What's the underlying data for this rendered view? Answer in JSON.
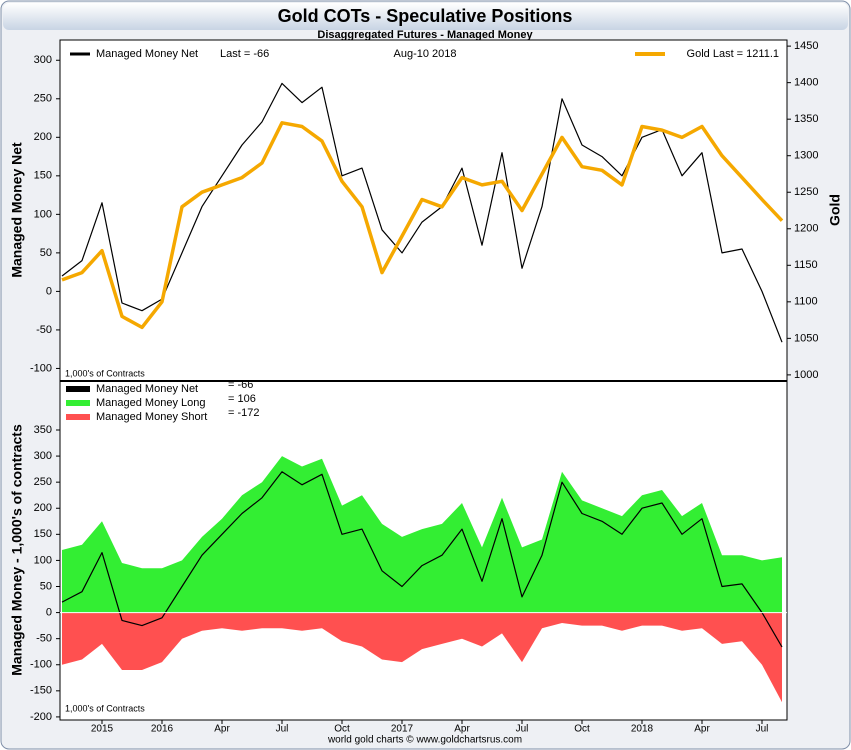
{
  "title": "Gold COTs - Speculative Positions",
  "footer": "world gold charts © www.goldchartsrus.com",
  "chart_data": [
    {
      "type": "line",
      "subtitle": "Disaggregated Futures - Managed Money",
      "date_label": "Aug-10  2018",
      "y_label": "Managed Money Net",
      "y2_label": "Gold",
      "note": "1,000's of Contracts",
      "legend_last": [
        "Last = -66",
        "Gold Last = 1211.1"
      ],
      "x": [
        "2015-08",
        "2015-09",
        "2015-10",
        "2015-11",
        "2015-12",
        "2016-01",
        "2016-02",
        "2016-03",
        "2016-04",
        "2016-05",
        "2016-06",
        "2016-07",
        "2016-08",
        "2016-09",
        "2016-10",
        "2016-11",
        "2016-12",
        "2017-01",
        "2017-02",
        "2017-03",
        "2017-04",
        "2017-05",
        "2017-06",
        "2017-07",
        "2017-08",
        "2017-09",
        "2017-10",
        "2017-11",
        "2017-12",
        "2018-01",
        "2018-02",
        "2018-03",
        "2018-04",
        "2018-05",
        "2018-06",
        "2018-07",
        "2018-08"
      ],
      "xlim": [
        "2015-08",
        "2018-08"
      ],
      "series": [
        {
          "name": "Managed Money Net",
          "color": "#000000",
          "values": [
            20,
            40,
            115,
            -15,
            -25,
            -10,
            50,
            110,
            150,
            190,
            220,
            270,
            245,
            265,
            150,
            160,
            80,
            50,
            90,
            110,
            160,
            60,
            180,
            30,
            110,
            250,
            190,
            175,
            150,
            200,
            210,
            150,
            180,
            50,
            55,
            0,
            -66
          ]
        },
        {
          "name": null,
          "color": "#f5a800",
          "axis": "y2",
          "values": [
            1130,
            1140,
            1170,
            1080,
            1065,
            1100,
            1230,
            1250,
            1260,
            1270,
            1290,
            1345,
            1340,
            1320,
            1265,
            1230,
            1140,
            1190,
            1240,
            1230,
            1270,
            1260,
            1265,
            1225,
            1275,
            1325,
            1285,
            1280,
            1260,
            1340,
            1335,
            1325,
            1340,
            1300,
            1270,
            1240,
            1211.1
          ]
        }
      ],
      "ylim": [
        -115,
        325
      ],
      "yticks": [
        -100,
        -50,
        0,
        50,
        100,
        150,
        200,
        250,
        300
      ],
      "y2lim": [
        993,
        1457
      ],
      "y2ticks": [
        1000,
        1050,
        1100,
        1150,
        1200,
        1250,
        1300,
        1350,
        1400,
        1450
      ]
    },
    {
      "type": "area",
      "y_label": "Managed Money - 1,000's of contracts",
      "note": "1,000's of Contracts",
      "x": [
        "2015-08",
        "2015-09",
        "2015-10",
        "2015-11",
        "2015-12",
        "2016-01",
        "2016-02",
        "2016-03",
        "2016-04",
        "2016-05",
        "2016-06",
        "2016-07",
        "2016-08",
        "2016-09",
        "2016-10",
        "2016-11",
        "2016-12",
        "2017-01",
        "2017-02",
        "2017-03",
        "2017-04",
        "2017-05",
        "2017-06",
        "2017-07",
        "2017-08",
        "2017-09",
        "2017-10",
        "2017-11",
        "2017-12",
        "2018-01",
        "2018-02",
        "2018-03",
        "2018-04",
        "2018-05",
        "2018-06",
        "2018-07",
        "2018-08"
      ],
      "xlim": [
        "2015-08",
        "2018-08"
      ],
      "series": [
        {
          "name": "Managed Money Long",
          "color": "#33ee33",
          "kind": "area",
          "last_label": "= 106",
          "values": [
            120,
            130,
            175,
            95,
            85,
            85,
            100,
            145,
            180,
            225,
            250,
            300,
            280,
            295,
            205,
            225,
            170,
            145,
            160,
            170,
            210,
            125,
            220,
            125,
            140,
            270,
            215,
            200,
            185,
            225,
            235,
            185,
            210,
            110,
            110,
            100,
            106
          ]
        },
        {
          "name": "Managed Money Short",
          "color": "#ff5050",
          "kind": "area",
          "last_label": "= -172",
          "values": [
            -100,
            -90,
            -60,
            -110,
            -110,
            -95,
            -50,
            -35,
            -30,
            -35,
            -30,
            -30,
            -35,
            -30,
            -55,
            -65,
            -90,
            -95,
            -70,
            -60,
            -50,
            -65,
            -40,
            -95,
            -30,
            -20,
            -25,
            -25,
            -35,
            -25,
            -25,
            -35,
            -30,
            -60,
            -55,
            -100,
            -172
          ]
        },
        {
          "name": "Managed Money Net",
          "color": "#000000",
          "kind": "line",
          "last_label": "= -66",
          "values": [
            20,
            40,
            115,
            -15,
            -25,
            -10,
            50,
            110,
            150,
            190,
            220,
            270,
            245,
            265,
            150,
            160,
            80,
            50,
            90,
            110,
            160,
            60,
            180,
            30,
            110,
            250,
            190,
            175,
            150,
            200,
            210,
            150,
            180,
            50,
            55,
            0,
            -66
          ]
        }
      ],
      "legend_order": [
        2,
        0,
        1
      ],
      "ylim": [
        -204,
        442
      ],
      "yticks": [
        -200,
        -150,
        -100,
        -50,
        0,
        50,
        100,
        150,
        200,
        250,
        300,
        350
      ],
      "xticks": [
        {
          "value": "2015-10",
          "label": "2015"
        },
        {
          "value": "2016-01",
          "label": "2016"
        },
        {
          "value": "2016-04",
          "label": "Apr"
        },
        {
          "value": "2016-07",
          "label": "Jul"
        },
        {
          "value": "2016-10",
          "label": "Oct"
        },
        {
          "value": "2017-01",
          "label": "2017"
        },
        {
          "value": "2017-04",
          "label": "Apr"
        },
        {
          "value": "2017-07",
          "label": "Jul"
        },
        {
          "value": "2017-10",
          "label": "Oct"
        },
        {
          "value": "2018-01",
          "label": "2018"
        },
        {
          "value": "2018-04",
          "label": "Apr"
        },
        {
          "value": "2018-07",
          "label": "Jul"
        }
      ]
    }
  ]
}
